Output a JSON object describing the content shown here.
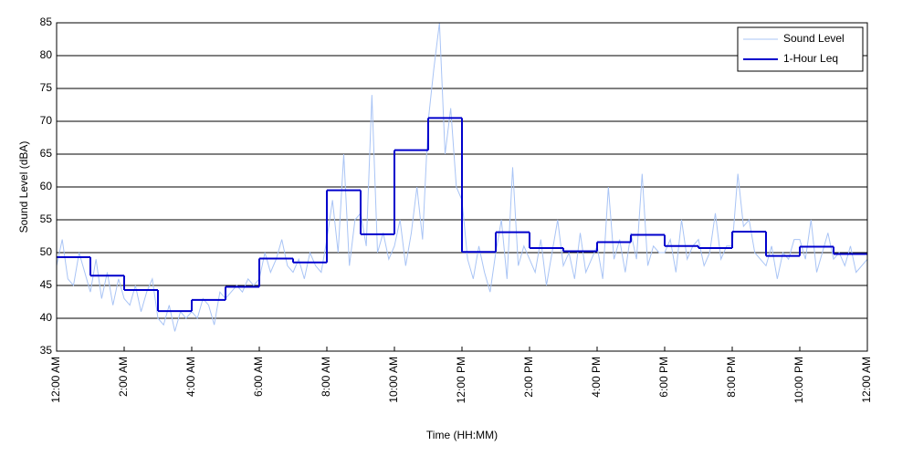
{
  "chart_data": {
    "type": "line",
    "x_label": "Time (HH:MM)",
    "y_label": "Sound Level (dBA)",
    "xlim": [
      0,
      1440
    ],
    "ylim": [
      35,
      85
    ],
    "xticks": [
      {
        "value": 0,
        "label": "12:00 AM"
      },
      {
        "value": 120,
        "label": "2:00 AM"
      },
      {
        "value": 240,
        "label": "4:00 AM"
      },
      {
        "value": 360,
        "label": "6:00 AM"
      },
      {
        "value": 480,
        "label": "8:00 AM"
      },
      {
        "value": 600,
        "label": "10:00 AM"
      },
      {
        "value": 720,
        "label": "12:00 PM"
      },
      {
        "value": 840,
        "label": "2:00 PM"
      },
      {
        "value": 960,
        "label": "4:00 PM"
      },
      {
        "value": 1080,
        "label": "6:00 PM"
      },
      {
        "value": 1200,
        "label": "8:00 PM"
      },
      {
        "value": 1320,
        "label": "10:00 PM"
      },
      {
        "value": 1440,
        "label": "12:00 AM"
      }
    ],
    "yticks": [
      35,
      40,
      45,
      50,
      55,
      60,
      65,
      70,
      75,
      80,
      85
    ],
    "grid": true,
    "legend": "upper right",
    "series": [
      {
        "name": "Sound Level",
        "color": "#a9c4f5",
        "width": 1,
        "x": [
          0,
          10,
          20,
          30,
          40,
          50,
          60,
          70,
          80,
          90,
          100,
          110,
          120,
          130,
          140,
          150,
          160,
          170,
          180,
          190,
          200,
          210,
          220,
          230,
          240,
          250,
          260,
          270,
          280,
          290,
          300,
          310,
          320,
          330,
          340,
          350,
          360,
          370,
          380,
          390,
          400,
          410,
          420,
          430,
          440,
          450,
          460,
          470,
          480,
          490,
          500,
          510,
          520,
          530,
          540,
          550,
          560,
          570,
          580,
          590,
          600,
          610,
          620,
          630,
          640,
          650,
          660,
          670,
          680,
          690,
          700,
          710,
          720,
          730,
          740,
          750,
          760,
          770,
          780,
          790,
          800,
          810,
          820,
          830,
          840,
          850,
          860,
          870,
          880,
          890,
          900,
          910,
          920,
          930,
          940,
          950,
          960,
          970,
          980,
          990,
          1000,
          1010,
          1020,
          1030,
          1040,
          1050,
          1060,
          1070,
          1080,
          1090,
          1100,
          1110,
          1120,
          1130,
          1140,
          1150,
          1160,
          1170,
          1180,
          1190,
          1200,
          1210,
          1220,
          1230,
          1240,
          1250,
          1260,
          1270,
          1280,
          1290,
          1300,
          1310,
          1320,
          1330,
          1340,
          1350,
          1360,
          1370,
          1380,
          1390,
          1400,
          1410,
          1420,
          1430,
          1440
        ],
        "values": [
          48,
          52,
          46,
          45,
          50,
          47,
          44,
          49,
          43,
          47,
          42,
          46,
          43,
          42,
          45,
          41,
          44,
          46,
          40,
          39,
          42,
          38,
          41,
          40,
          41,
          40,
          43,
          42,
          39,
          44,
          43,
          44,
          45,
          44,
          46,
          45,
          46,
          50,
          47,
          49,
          52,
          48,
          47,
          49,
          46,
          50,
          48,
          47,
          52,
          58,
          50,
          65,
          48,
          55,
          56,
          51,
          74,
          50,
          53,
          49,
          51,
          55,
          48,
          53,
          60,
          52,
          70,
          78,
          85,
          65,
          72,
          60,
          58,
          49,
          46,
          51,
          47,
          44,
          50,
          55,
          46,
          63,
          48,
          51,
          49,
          47,
          52,
          45,
          50,
          55,
          48,
          50,
          46,
          53,
          47,
          49,
          51,
          46,
          60,
          49,
          52,
          47,
          53,
          49,
          62,
          48,
          51,
          50,
          50,
          52,
          47,
          55,
          49,
          51,
          52,
          48,
          50,
          56,
          49,
          51,
          51,
          62,
          54,
          55,
          50,
          49,
          48,
          51,
          46,
          50,
          49,
          52,
          52,
          49,
          55,
          47,
          50,
          53,
          49,
          50,
          48,
          51,
          47,
          48,
          49
        ]
      },
      {
        "name": "1-Hour Leq",
        "color": "#0000cc",
        "width": 2,
        "drawstyle": "steps-post",
        "x": [
          0,
          60,
          120,
          180,
          240,
          300,
          360,
          420,
          480,
          540,
          600,
          660,
          720,
          780,
          840,
          900,
          960,
          1020,
          1080,
          1140,
          1200,
          1260,
          1320,
          1380
        ],
        "values": [
          49.3,
          46.5,
          44.3,
          41.1,
          42.8,
          44.8,
          49.1,
          48.5,
          59.5,
          52.8,
          65.6,
          70.5,
          50.1,
          53.1,
          50.7,
          50.2,
          51.6,
          52.7,
          51.0,
          50.7,
          53.2,
          49.5,
          50.9,
          49.8
        ]
      }
    ]
  }
}
